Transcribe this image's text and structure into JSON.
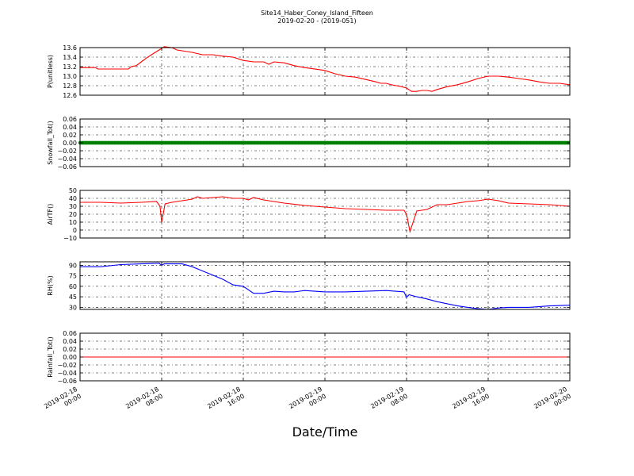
{
  "figure": {
    "title_line1": "Site14_Haber_Coney_Island_Fifteen",
    "title_line2": "2019-02-20 - (2019-051)",
    "xlabel": "Date/Time",
    "x_ticks": [
      {
        "line1": "2019-02-18",
        "line2": "00:00"
      },
      {
        "line1": "2019-02-18",
        "line2": "08:00"
      },
      {
        "line1": "2019-02-18",
        "line2": "16:00"
      },
      {
        "line1": "2019-02-19",
        "line2": "00:00"
      },
      {
        "line1": "2019-02-19",
        "line2": "08:00"
      },
      {
        "line1": "2019-02-19",
        "line2": "16:00"
      },
      {
        "line1": "2019-02-20",
        "line2": "00:00"
      }
    ]
  },
  "chart_data": [
    {
      "type": "line",
      "ylabel": "P(unitless)",
      "ylim": [
        12.6,
        13.6
      ],
      "yticks": [
        "13.6",
        "13.4",
        "13.2",
        "13.0",
        "12.8",
        "12.6"
      ],
      "xlim": [
        "2019-02-18 00:00",
        "2019-02-20 00:00"
      ],
      "grid": true,
      "color": "#ff0000",
      "series": [
        {
          "x": [
            "2019-02-18 00:00",
            "2019-02-18 01:30",
            "2019-02-18 01:45",
            "2019-02-18 03:00",
            "2019-02-18 04:45",
            "2019-02-18 05:00",
            "2019-02-18 05:30",
            "2019-02-18 06:00",
            "2019-02-18 06:30",
            "2019-02-18 07:00",
            "2019-02-18 07:45",
            "2019-02-18 08:15",
            "2019-02-18 09:00",
            "2019-02-18 09:30",
            "2019-02-18 11:00",
            "2019-02-18 12:00",
            "2019-02-18 13:00",
            "2019-02-18 14:00",
            "2019-02-18 15:00",
            "2019-02-18 16:00",
            "2019-02-18 17:00",
            "2019-02-18 18:00",
            "2019-02-18 18:30",
            "2019-02-18 19:00",
            "2019-02-18 20:00",
            "2019-02-18 21:00",
            "2019-02-18 22:00",
            "2019-02-19 00:00",
            "2019-02-19 01:00",
            "2019-02-19 02:00",
            "2019-02-19 03:00",
            "2019-02-19 04:00",
            "2019-02-19 05:00",
            "2019-02-19 05:30",
            "2019-02-19 06:00",
            "2019-02-19 06:30",
            "2019-02-19 07:00",
            "2019-02-19 07:30",
            "2019-02-19 08:00",
            "2019-02-19 08:30",
            "2019-02-19 09:00",
            "2019-02-19 09:30",
            "2019-02-19 10:00",
            "2019-02-19 10:30",
            "2019-02-19 11:00",
            "2019-02-19 12:00",
            "2019-02-19 13:00",
            "2019-02-19 14:00",
            "2019-02-19 15:00",
            "2019-02-19 16:00",
            "2019-02-19 17:00",
            "2019-02-19 18:00",
            "2019-02-19 19:00",
            "2019-02-19 20:00",
            "2019-02-19 21:00",
            "2019-02-19 22:00",
            "2019-02-19 23:00",
            "2019-02-20 00:00"
          ],
          "y": [
            13.18,
            13.18,
            13.15,
            13.15,
            13.15,
            13.2,
            13.22,
            13.3,
            13.38,
            13.45,
            13.55,
            13.62,
            13.6,
            13.55,
            13.5,
            13.45,
            13.45,
            13.42,
            13.4,
            13.33,
            13.3,
            13.3,
            13.25,
            13.3,
            13.28,
            13.22,
            13.18,
            13.12,
            13.05,
            13.0,
            12.98,
            12.93,
            12.88,
            12.85,
            12.85,
            12.82,
            12.8,
            12.78,
            12.75,
            12.68,
            12.68,
            12.7,
            12.7,
            12.68,
            12.72,
            12.78,
            12.82,
            12.88,
            12.95,
            13.0,
            13.0,
            12.98,
            12.95,
            12.92,
            12.88,
            12.85,
            12.85,
            12.82
          ]
        }
      ]
    },
    {
      "type": "line",
      "ylabel": "Snowfall_Tot()",
      "ylim": [
        -0.06,
        0.06
      ],
      "yticks": [
        "0.06",
        "0.04",
        "0.02",
        "0.00",
        "−0.02",
        "−0.04",
        "−0.06"
      ],
      "xlim": [
        "2019-02-18 00:00",
        "2019-02-20 00:00"
      ],
      "grid": true,
      "color": "#008000",
      "series": [
        {
          "x": [
            "2019-02-18 00:00",
            "2019-02-20 00:00"
          ],
          "y": [
            0.0,
            0.0
          ]
        }
      ]
    },
    {
      "type": "line",
      "ylabel": "AirTF()",
      "ylim": [
        -10,
        50
      ],
      "yticks": [
        "50",
        "40",
        "30",
        "20",
        "10",
        "0",
        "−10"
      ],
      "xlim": [
        "2019-02-18 00:00",
        "2019-02-20 00:00"
      ],
      "grid": true,
      "color": "#ff0000",
      "series": [
        {
          "x": [
            "2019-02-18 00:00",
            "2019-02-18 02:00",
            "2019-02-18 04:00",
            "2019-02-18 06:00",
            "2019-02-18 07:30",
            "2019-02-18 07:50",
            "2019-02-18 08:00",
            "2019-02-18 08:20",
            "2019-02-18 09:00",
            "2019-02-18 10:00",
            "2019-02-18 10:30",
            "2019-02-18 11:00",
            "2019-02-18 11:30",
            "2019-02-18 12:00",
            "2019-02-18 13:00",
            "2019-02-18 14:00",
            "2019-02-18 15:00",
            "2019-02-18 16:00",
            "2019-02-18 16:30",
            "2019-02-18 17:00",
            "2019-02-18 18:00",
            "2019-02-18 19:00",
            "2019-02-18 20:00",
            "2019-02-18 22:00",
            "2019-02-19 00:00",
            "2019-02-19 02:00",
            "2019-02-19 04:00",
            "2019-02-19 06:00",
            "2019-02-19 07:45",
            "2019-02-19 08:00",
            "2019-02-19 08:20",
            "2019-02-19 09:00",
            "2019-02-19 10:00",
            "2019-02-19 11:00",
            "2019-02-19 12:00",
            "2019-02-19 13:00",
            "2019-02-19 14:00",
            "2019-02-19 15:00",
            "2019-02-19 16:00",
            "2019-02-19 16:30",
            "2019-02-19 17:00",
            "2019-02-19 18:00",
            "2019-02-19 20:00",
            "2019-02-19 22:00",
            "2019-02-20 00:00"
          ],
          "y": [
            35,
            35,
            34,
            35,
            36,
            30,
            10,
            33,
            35,
            37,
            38,
            39,
            42,
            40,
            41,
            42,
            40,
            40,
            38,
            41,
            38,
            36,
            34,
            31,
            29,
            27,
            26,
            25,
            25,
            20,
            -2,
            24,
            26,
            32,
            32,
            34,
            36,
            37,
            39,
            38,
            37,
            34,
            33,
            32,
            30
          ]
        }
      ]
    },
    {
      "type": "line",
      "ylabel": "RH(%)",
      "ylim": [
        27,
        95
      ],
      "yticks": [
        "90",
        "75",
        "60",
        "45",
        "30"
      ],
      "xlim": [
        "2019-02-18 00:00",
        "2019-02-20 00:00"
      ],
      "grid": true,
      "color": "#0000ff",
      "series": [
        {
          "x": [
            "2019-02-18 00:00",
            "2019-02-18 02:00",
            "2019-02-18 04:00",
            "2019-02-18 06:00",
            "2019-02-18 07:45",
            "2019-02-18 08:00",
            "2019-02-18 08:15",
            "2019-02-18 10:00",
            "2019-02-18 11:00",
            "2019-02-18 12:00",
            "2019-02-18 13:00",
            "2019-02-18 14:00",
            "2019-02-18 15:00",
            "2019-02-18 16:00",
            "2019-02-18 17:00",
            "2019-02-18 18:00",
            "2019-02-18 19:00",
            "2019-02-18 20:00",
            "2019-02-18 21:00",
            "2019-02-18 22:00",
            "2019-02-19 00:00",
            "2019-02-19 02:00",
            "2019-02-19 04:00",
            "2019-02-19 06:00",
            "2019-02-19 07:45",
            "2019-02-19 08:00",
            "2019-02-19 08:15",
            "2019-02-19 09:00",
            "2019-02-19 10:00",
            "2019-02-19 11:00",
            "2019-02-19 12:00",
            "2019-02-19 13:00",
            "2019-02-19 14:00",
            "2019-02-19 15:00",
            "2019-02-19 16:00",
            "2019-02-19 17:00",
            "2019-02-19 18:00",
            "2019-02-19 20:00",
            "2019-02-19 22:00",
            "2019-02-20 00:00"
          ],
          "y": [
            88,
            88,
            91,
            92,
            93,
            90,
            92,
            92,
            88,
            82,
            76,
            70,
            62,
            60,
            50,
            50,
            53,
            52,
            52,
            54,
            52,
            52,
            53,
            54,
            52,
            44,
            48,
            45,
            42,
            38,
            35,
            32,
            30,
            28,
            27,
            29,
            30,
            30,
            32,
            33
          ]
        }
      ]
    },
    {
      "type": "line",
      "ylabel": "Rainfall_Tot()",
      "ylim": [
        -0.06,
        0.06
      ],
      "yticks": [
        "0.06",
        "0.04",
        "0.02",
        "0.00",
        "−0.02",
        "−0.04",
        "−0.06"
      ],
      "xlim": [
        "2019-02-18 00:00",
        "2019-02-20 00:00"
      ],
      "grid": true,
      "color": "#ff0000",
      "series": [
        {
          "x": [
            "2019-02-18 00:00",
            "2019-02-20 00:00"
          ],
          "y": [
            0.0,
            0.0
          ]
        }
      ]
    }
  ]
}
